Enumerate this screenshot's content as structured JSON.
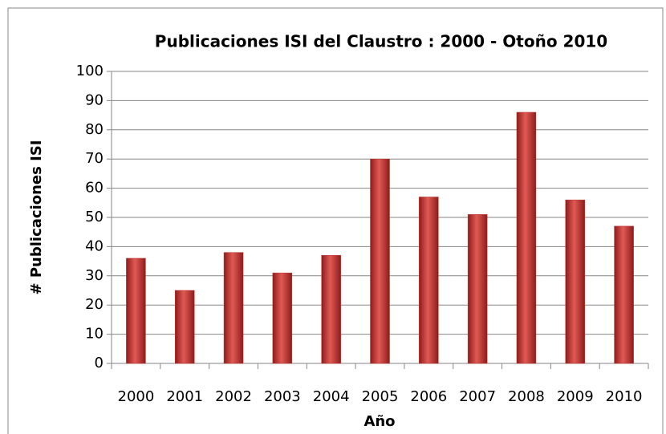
{
  "chart_data": {
    "type": "bar",
    "title": "Publicaciones ISI del Claustro : 2000 - Otoño 2010",
    "x_label": "Año",
    "y_label": "# Publicaciones ISI",
    "categories": [
      "2000",
      "2001",
      "2002",
      "2003",
      "2004",
      "2005",
      "2006",
      "2007",
      "2008",
      "2009",
      "2010"
    ],
    "values": [
      36,
      25,
      38,
      31,
      37,
      70,
      57,
      51,
      86,
      56,
      47
    ],
    "color": "#c0302e",
    "ylim": [
      0,
      100
    ],
    "yticks": [
      0,
      10,
      20,
      30,
      40,
      50,
      60,
      70,
      80,
      90,
      100
    ],
    "grid": true
  }
}
